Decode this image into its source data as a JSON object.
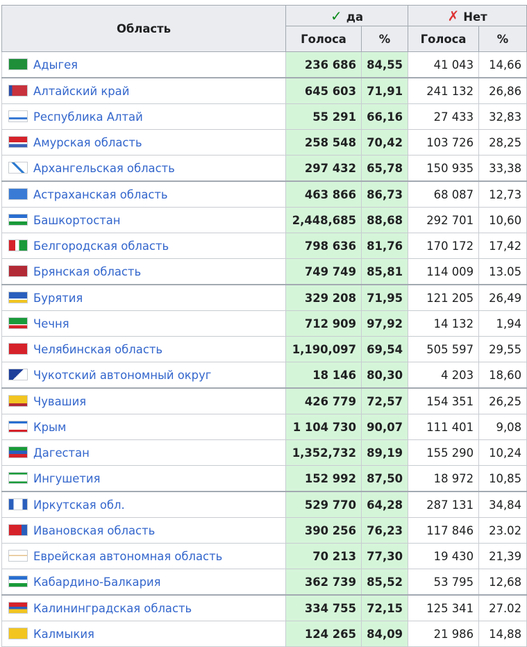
{
  "header": {
    "region": "Область",
    "yes_mark": "✓",
    "yes": "да",
    "no_mark": "✗",
    "no": "Нет",
    "votes": "Голоса",
    "pct": "%"
  },
  "rows": [
    {
      "name": "Адыгея",
      "yes_votes": "236 686",
      "yes_pct": "84,55",
      "no_votes": "41 043",
      "no_pct": "14,66",
      "flag": "linear-gradient(#1f8f3a,#1f8f3a)"
    },
    {
      "name": "Алтайский край",
      "yes_votes": "645 603",
      "yes_pct": "71,91",
      "no_votes": "241 132",
      "no_pct": "26,86",
      "flag": "linear-gradient(90deg,#2b4ea8 0 18%,#c8323c 18% 100%)"
    },
    {
      "name": "Республика Алтай",
      "yes_votes": "55 291",
      "yes_pct": "66,16",
      "no_votes": "27 433",
      "no_pct": "32,83",
      "flag": "linear-gradient(#ffffff 0 60%,#3a7bd5 60% 80%,#ffffff 80% 100%)"
    },
    {
      "name": "Амурская область",
      "yes_votes": "258 548",
      "yes_pct": "70,42",
      "no_votes": "103 726",
      "no_pct": "28,25",
      "flag": "linear-gradient(#d6222a 0 55%,#ffffff 55% 70%,#3a62b8 70% 100%)"
    },
    {
      "name": "Архангельская область",
      "yes_votes": "297 432",
      "yes_pct": "65,78",
      "no_votes": "150 935",
      "no_pct": "33,38",
      "flag": "linear-gradient(45deg,#ffffff 0 44%,#2e7bd0 44% 56%,#ffffff 56% 100%)"
    },
    {
      "name": "Астраханская область",
      "yes_votes": "463 866",
      "yes_pct": "86,73",
      "no_votes": "68 087",
      "no_pct": "12,73",
      "flag": "linear-gradient(#3a7bd5,#3a7bd5)"
    },
    {
      "name": "Башкортостан",
      "yes_votes": "2,448,685",
      "yes_pct": "88,68",
      "no_votes": "292 701",
      "no_pct": "10,60",
      "flag": "linear-gradient(#2a6fd0 0 33%,#ffffff 33% 66%,#1a9a3a 66% 100%)"
    },
    {
      "name": "Белгородская область",
      "yes_votes": "798 636",
      "yes_pct": "81,76",
      "no_votes": "170 172",
      "no_pct": "17,42",
      "flag": "linear-gradient(90deg,#d6222a 0 35%,#ffffff 35% 55%,#1a9a3a 55% 100%)"
    },
    {
      "name": "Брянская область",
      "yes_votes": "749 749",
      "yes_pct": "85,81",
      "no_votes": "114 009",
      "no_pct": "13.05",
      "flag": "linear-gradient(#b22a35,#b22a35)"
    },
    {
      "name": "Бурятия",
      "yes_votes": "329 208",
      "yes_pct": "71,95",
      "no_votes": "121 205",
      "no_pct": "26,49",
      "flag": "linear-gradient(#2a5fbd 0 60%,#ffffff 60% 75%,#f2c521 75% 100%)"
    },
    {
      "name": "Чечня",
      "yes_votes": "712 909",
      "yes_pct": "97,92",
      "no_votes": "14 132",
      "no_pct": "1,94",
      "flag": "linear-gradient(#1a9a3a 0 60%,#ffffff 60% 70%,#d6222a 70% 100%)"
    },
    {
      "name": "Челябинская область",
      "yes_votes": "1,190,097",
      "yes_pct": "69,54",
      "no_votes": "505 597",
      "no_pct": "29,55",
      "flag": "linear-gradient(#d6222a,#d6222a)"
    },
    {
      "name": "Чукотский автономный округ",
      "yes_votes": "18 146",
      "yes_pct": "80,30",
      "no_votes": "4 203",
      "no_pct": "18,60",
      "flag": "linear-gradient(135deg,#1e3f9a 0 50%,#ffffff 50% 100%)"
    },
    {
      "name": "Чувашия",
      "yes_votes": "426 779",
      "yes_pct": "72,57",
      "no_votes": "154 351",
      "no_pct": "26,25",
      "flag": "linear-gradient(#f2c521 0 75%,#b22a35 75% 100%)"
    },
    {
      "name": "Крым",
      "yes_votes": "1 104 730",
      "yes_pct": "90,07",
      "no_votes": "111 401",
      "no_pct": "9,08",
      "flag": "linear-gradient(#2a6fd0 0 20%,#ffffff 20% 80%,#d6222a 80% 100%)"
    },
    {
      "name": "Дагестан",
      "yes_votes": "1,352,732",
      "yes_pct": "89,19",
      "no_votes": "155 290",
      "no_pct": "10,24",
      "flag": "linear-gradient(#1a9a3a 0 33%,#2a5fbd 33% 66%,#d6222a 66% 100%)"
    },
    {
      "name": "Ингушетия",
      "yes_votes": "152 992",
      "yes_pct": "87,50",
      "no_votes": "18 972",
      "no_pct": "10,85",
      "flag": "linear-gradient(#1a9a3a 0 18%,#ffffff 18% 82%,#1a9a3a 82% 100%)"
    },
    {
      "name": "Иркутская обл.",
      "yes_votes": "529 770",
      "yes_pct": "64,28",
      "no_votes": "287 131",
      "no_pct": "34,84",
      "flag": "linear-gradient(90deg,#2a5fbd 0 25%,#ffffff 25% 75%,#2a5fbd 75% 100%)"
    },
    {
      "name": "Ивановская область",
      "yes_votes": "390 256",
      "yes_pct": "76,23",
      "no_votes": "117 846",
      "no_pct": "23.02",
      "flag": "linear-gradient(90deg,#d6222a 0 70%,#2a5fbd 70% 100%)"
    },
    {
      "name": "Еврейская автономная область",
      "yes_votes": "70 213",
      "yes_pct": "77,30",
      "no_votes": "19 430",
      "no_pct": "21,39",
      "flag": "linear-gradient(#ffffff 0 45%,#e4c28a 45% 55%,#ffffff 55% 100%)"
    },
    {
      "name": "Кабардино-Балкария",
      "yes_votes": "362 739",
      "yes_pct": "85,52",
      "no_votes": "53 795",
      "no_pct": "12,68",
      "flag": "linear-gradient(#2a6fd0 0 33%,#ffffff 33% 66%,#1a9a3a 66% 100%)"
    },
    {
      "name": "Калининградская область",
      "yes_votes": "334 755",
      "yes_pct": "72,15",
      "no_votes": "125 341",
      "no_pct": "27.02",
      "flag": "linear-gradient(#d6222a 0 40%,#2a5fbd 40% 65%,#f2c521 65% 100%)"
    },
    {
      "name": "Калмыкия",
      "yes_votes": "124 265",
      "yes_pct": "84,09",
      "no_votes": "21 986",
      "no_pct": "14,88",
      "flag": "linear-gradient(#f2c521 0 100%)"
    }
  ],
  "group_starts": [
    1,
    5,
    9,
    13,
    17,
    21
  ]
}
